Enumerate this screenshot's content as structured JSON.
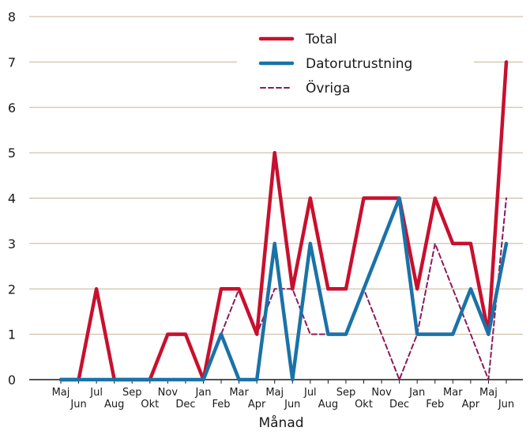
{
  "chart_data": {
    "type": "line",
    "xlabel": "Månad",
    "ylabel": "",
    "ylim": [
      0,
      8
    ],
    "yticks": [
      0,
      1,
      2,
      3,
      4,
      5,
      6,
      7,
      8
    ],
    "grid": "horizontal",
    "legend_position": "top-right",
    "categories": [
      "Maj",
      "Jun",
      "Jul",
      "Aug",
      "Sep",
      "Okt",
      "Nov",
      "Dec",
      "Jan",
      "Feb",
      "Mar",
      "Apr",
      "Maj",
      "Jun",
      "Jul",
      "Aug",
      "Sep",
      "Okt",
      "Nov",
      "Dec",
      "Jan",
      "Feb",
      "Mar",
      "Apr",
      "Maj",
      "Jun"
    ],
    "series": [
      {
        "name": "Total",
        "color": "#c8102e",
        "style": "solid",
        "values": [
          0,
          0,
          2,
          0,
          0,
          0,
          1,
          1,
          0,
          2,
          2,
          1,
          5,
          2,
          4,
          2,
          2,
          4,
          4,
          4,
          2,
          4,
          3,
          3,
          1,
          7
        ]
      },
      {
        "name": "Datorutrustning",
        "color": "#1a72a8",
        "style": "solid",
        "values": [
          0,
          0,
          0,
          0,
          0,
          0,
          0,
          0,
          0,
          1,
          0,
          0,
          3,
          0,
          3,
          1,
          1,
          2,
          3,
          4,
          1,
          1,
          1,
          2,
          1,
          3
        ]
      },
      {
        "name": "Övriga",
        "color": "#8b1a5c",
        "style": "dashed",
        "values": [
          0,
          0,
          2,
          0,
          0,
          0,
          1,
          1,
          0,
          1,
          2,
          1,
          2,
          2,
          1,
          1,
          1,
          2,
          1,
          0,
          1,
          3,
          2,
          1,
          0,
          4
        ]
      }
    ]
  }
}
